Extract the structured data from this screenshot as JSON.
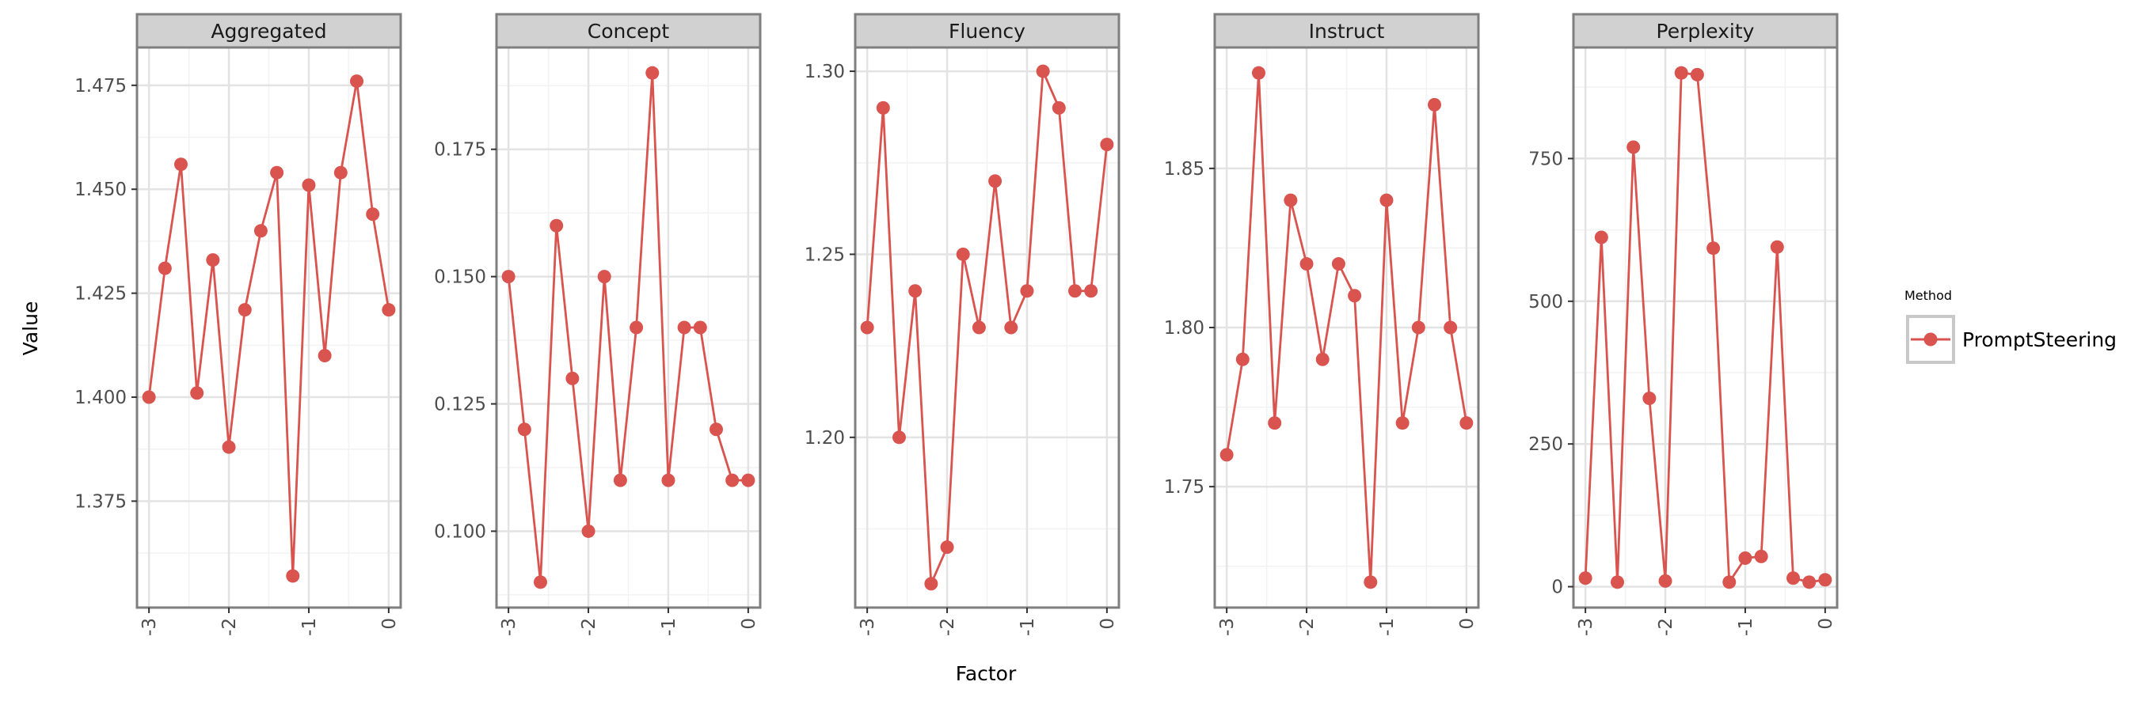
{
  "y_axis_title": "Value",
  "x_axis_title": "Factor",
  "legend": {
    "title": "Method",
    "label": "PromptSteering"
  },
  "colors": {
    "series": "#d9534f",
    "strip_bg": "#d1d1d1",
    "panel_border": "#7f7f7f",
    "grid_major": "#e3e3e3",
    "grid_minor": "#f2f2f2"
  },
  "chart_data": [
    {
      "type": "line",
      "title": "Aggregated",
      "x": [
        -3,
        -2.8,
        -2.6,
        -2.4,
        -2.2,
        -2,
        -1.8,
        -1.6,
        -1.4,
        -1.2,
        -1,
        -0.8,
        -0.6,
        -0.4,
        -0.2,
        0
      ],
      "series": [
        {
          "name": "PromptSteering",
          "values": [
            1.4,
            1.431,
            1.456,
            1.401,
            1.433,
            1.388,
            1.421,
            1.44,
            1.454,
            1.357,
            1.451,
            1.41,
            1.454,
            1.476,
            1.444,
            1.421
          ]
        }
      ],
      "xlim": [
        -3.15,
        0.15
      ],
      "ylim": [
        1.3494,
        1.4841
      ],
      "yticks": [
        1.375,
        1.4,
        1.425,
        1.45,
        1.475
      ],
      "ytick_labels": [
        "1.375",
        "1.400",
        "1.425",
        "1.450",
        "1.475"
      ],
      "xticks": [
        -3,
        -2,
        -1,
        0
      ],
      "xtick_labels": [
        "-3",
        "-2",
        "-1",
        "0"
      ],
      "grid": true
    },
    {
      "type": "line",
      "title": "Concept",
      "x": [
        -3,
        -2.8,
        -2.6,
        -2.4,
        -2.2,
        -2,
        -1.8,
        -1.6,
        -1.4,
        -1.2,
        -1,
        -0.8,
        -0.6,
        -0.4,
        -0.2,
        0
      ],
      "series": [
        {
          "name": "PromptSteering",
          "values": [
            0.15,
            0.12,
            0.09,
            0.16,
            0.13,
            0.1,
            0.15,
            0.11,
            0.14,
            0.19,
            0.11,
            0.14,
            0.14,
            0.12,
            0.11,
            0.11
          ]
        }
      ],
      "xlim": [
        -3.15,
        0.15
      ],
      "ylim": [
        0.085,
        0.195
      ],
      "yticks": [
        0.1,
        0.125,
        0.15,
        0.175
      ],
      "ytick_labels": [
        "0.100",
        "0.125",
        "0.150",
        "0.175"
      ],
      "xticks": [
        -3,
        -2,
        -1,
        0
      ],
      "xtick_labels": [
        "-3",
        "-2",
        "-1",
        "0"
      ],
      "grid": true
    },
    {
      "type": "line",
      "title": "Fluency",
      "x": [
        -3,
        -2.8,
        -2.6,
        -2.4,
        -2.2,
        -2,
        -1.8,
        -1.6,
        -1.4,
        -1.2,
        -1,
        -0.8,
        -0.6,
        -0.4,
        -0.2,
        0
      ],
      "series": [
        {
          "name": "PromptSteering",
          "values": [
            1.23,
            1.29,
            1.2,
            1.24,
            1.16,
            1.17,
            1.25,
            1.23,
            1.27,
            1.23,
            1.24,
            1.3,
            1.29,
            1.24,
            1.24,
            1.28
          ]
        }
      ],
      "xlim": [
        -3.15,
        0.15
      ],
      "ylim": [
        1.1535,
        1.3065
      ],
      "yticks": [
        1.2,
        1.25,
        1.3
      ],
      "ytick_labels": [
        "1.20",
        "1.25",
        "1.30"
      ],
      "xticks": [
        -3,
        -2,
        -1,
        0
      ],
      "xtick_labels": [
        "-3",
        "-2",
        "-1",
        "0"
      ],
      "grid": true
    },
    {
      "type": "line",
      "title": "Instruct",
      "x": [
        -3,
        -2.8,
        -2.6,
        -2.4,
        -2.2,
        -2,
        -1.8,
        -1.6,
        -1.4,
        -1.2,
        -1,
        -0.8,
        -0.6,
        -0.4,
        -0.2,
        0
      ],
      "series": [
        {
          "name": "PromptSteering",
          "values": [
            1.76,
            1.79,
            1.88,
            1.77,
            1.84,
            1.82,
            1.79,
            1.82,
            1.81,
            1.72,
            1.84,
            1.77,
            1.8,
            1.87,
            1.8,
            1.77
          ]
        }
      ],
      "xlim": [
        -3.15,
        0.15
      ],
      "ylim": [
        1.712,
        1.888
      ],
      "yticks": [
        1.75,
        1.8,
        1.85
      ],
      "ytick_labels": [
        "1.75",
        "1.80",
        "1.85"
      ],
      "xticks": [
        -3,
        -2,
        -1,
        0
      ],
      "xtick_labels": [
        "-3",
        "-2",
        "-1",
        "0"
      ],
      "grid": true
    },
    {
      "type": "line",
      "title": "Perplexity",
      "x": [
        -3,
        -2.8,
        -2.6,
        -2.4,
        -2.2,
        -2,
        -1.8,
        -1.6,
        -1.4,
        -1.2,
        -1,
        -0.8,
        -0.6,
        -0.4,
        -0.2,
        0
      ],
      "series": [
        {
          "name": "PromptSteering",
          "values": [
            15,
            612,
            8,
            770,
            330,
            10,
            900,
            897,
            593,
            8,
            50,
            53,
            595,
            15,
            8,
            12
          ]
        }
      ],
      "xlim": [
        -3.15,
        0.15
      ],
      "ylim": [
        -36.6,
        944.6
      ],
      "yticks": [
        0,
        250,
        500,
        750
      ],
      "ytick_labels": [
        "0",
        "250",
        "500",
        "750"
      ],
      "xticks": [
        -3,
        -2,
        -1,
        0
      ],
      "xtick_labels": [
        "-3",
        "-2",
        "-1",
        "0"
      ],
      "grid": true
    }
  ]
}
